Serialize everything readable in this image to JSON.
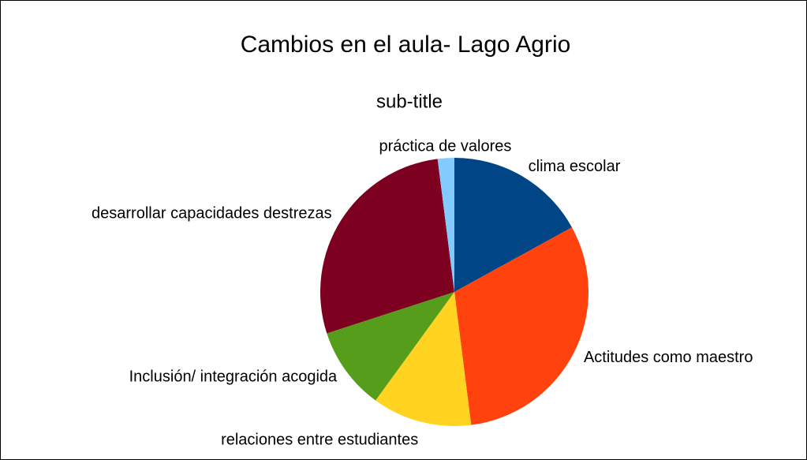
{
  "chart_data": {
    "type": "pie",
    "title": "Cambios en el aula- Lago Agrio",
    "subtitle": "sub-title",
    "categories": [
      "clima escolar",
      "Actitudes como maestro",
      "relaciones entre estudiantes",
      "Inclusión/ integración acogida",
      "desarrollar capacidades destrezas",
      "práctica de valores"
    ],
    "values": [
      17,
      31,
      12,
      10,
      28,
      2
    ],
    "colors": [
      "#004586",
      "#ff420e",
      "#ffd320",
      "#579d1c",
      "#7e0021",
      "#83caff"
    ]
  }
}
